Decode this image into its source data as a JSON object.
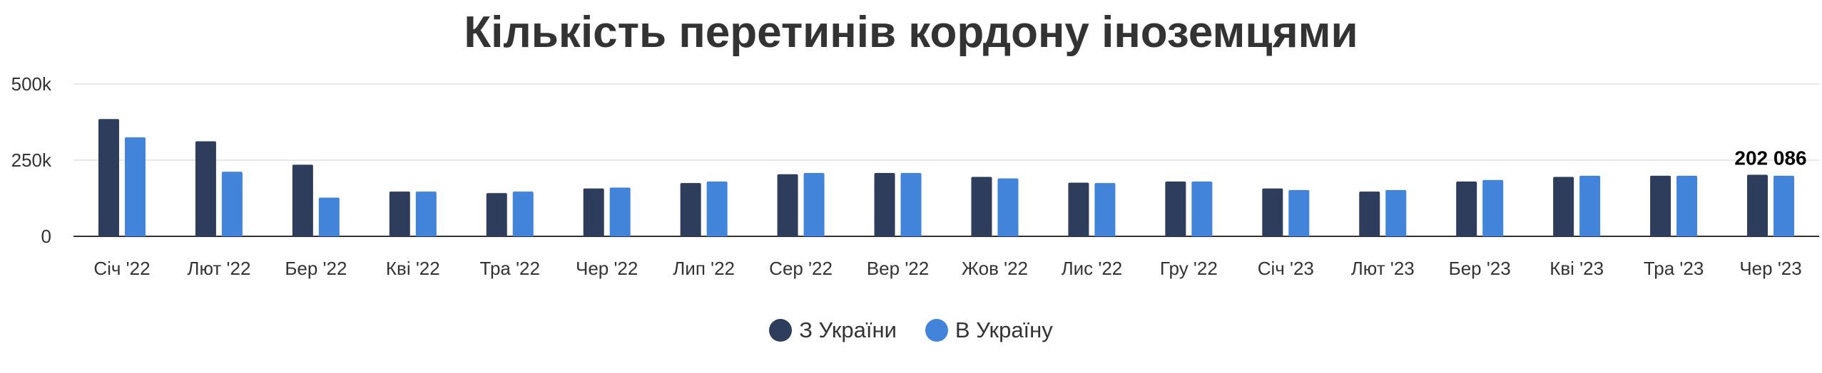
{
  "chart_data": {
    "type": "bar",
    "title": "Кількість перетинів кордону іноземцями",
    "categories": [
      "Січ '22",
      "Лют '22",
      "Бер '22",
      "Кві '22",
      "Тра '22",
      "Чер '22",
      "Лип '22",
      "Сер '22",
      "Вер '22",
      "Жов '22",
      "Лис '22",
      "Гру '22",
      "Січ '23",
      "Лют '23",
      "Бер '23",
      "Кві '23",
      "Тра '23",
      "Чер '23"
    ],
    "series": [
      {
        "name": "З України",
        "color": "#2f3d5c",
        "values": [
          385000,
          312000,
          235000,
          147000,
          142000,
          157000,
          175000,
          204000,
          208000,
          195000,
          176000,
          180000,
          157000,
          147000,
          180000,
          195000,
          199000,
          202086
        ]
      },
      {
        "name": "В Україну",
        "color": "#4184d9",
        "values": [
          325000,
          212000,
          127000,
          147000,
          147000,
          160000,
          180000,
          208000,
          208000,
          190000,
          175000,
          180000,
          152000,
          152000,
          185000,
          199000,
          199000,
          199000
        ]
      }
    ],
    "yticks": [
      0,
      250000,
      500000
    ],
    "ytick_labels": [
      "0",
      "250k",
      "500k"
    ],
    "ylim": [
      0,
      500000
    ],
    "grid": true,
    "legend_position": "bottom",
    "annotations": [
      {
        "category": "Чер '23",
        "series": "З України",
        "text": "202 086"
      }
    ]
  }
}
